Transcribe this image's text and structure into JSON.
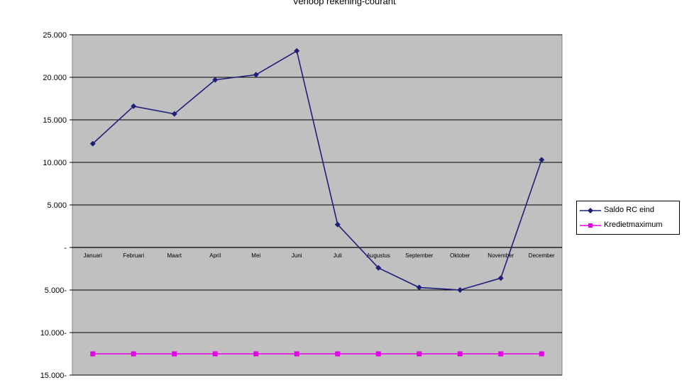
{
  "chart_data": {
    "type": "line",
    "title": "Verloop rekening-courant",
    "categories": [
      "Januari",
      "Februari",
      "Maart",
      "April",
      "Mei",
      "Juni",
      "Juli",
      "Augustus",
      "September",
      "Oktober",
      "November",
      "December"
    ],
    "series": [
      {
        "name": "Saldo RC eind",
        "color": "#1f1f7a",
        "marker": "diamond",
        "values": [
          12200,
          16600,
          15700,
          19700,
          20300,
          23100,
          2700,
          -2400,
          -4700,
          -5000,
          -3600,
          10300
        ]
      },
      {
        "name": "Kredietmaximum",
        "color": "#e600e6",
        "marker": "square",
        "values": [
          -12500,
          -12500,
          -12500,
          -12500,
          -12500,
          -12500,
          -12500,
          -12500,
          -12500,
          -12500,
          -12500,
          -12500
        ]
      }
    ],
    "ylim": [
      -15000,
      25000
    ],
    "yticks": [
      25000,
      20000,
      15000,
      10000,
      5000,
      0,
      -5000,
      -10000,
      -15000
    ],
    "ytick_labels": [
      "25.000",
      "20.000",
      "15.000",
      "10.000",
      "5.000",
      "-",
      "5.000-",
      "10.000-",
      "15.000-"
    ],
    "grid": true,
    "plot_background": "#c0c0c0",
    "legend_position": "right"
  }
}
